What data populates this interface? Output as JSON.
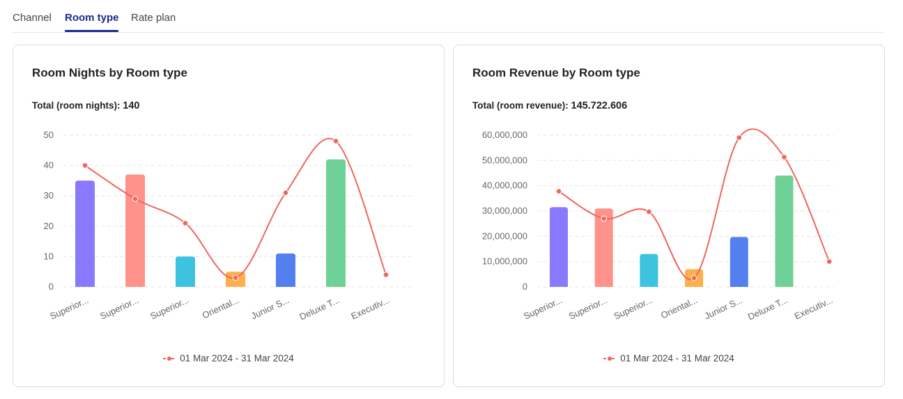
{
  "tabs": [
    {
      "label": "Channel",
      "active": false
    },
    {
      "label": "Room type",
      "active": true
    },
    {
      "label": "Rate plan",
      "active": false
    }
  ],
  "colors": {
    "accent": "#1b2a8c",
    "line": "#f0665a",
    "bars": [
      "#8979ff",
      "#ff928a",
      "#3cc3df",
      "#ffae4c",
      "#537ff1",
      "#6fd195",
      "#8979ff"
    ]
  },
  "chart_data": [
    {
      "type": "bar",
      "title": "Room Nights by Room type",
      "total_label": "Total (room nights):",
      "total_value": "140",
      "categories": [
        "Superior...",
        "Superior...",
        "Superior...",
        "Oriental...",
        "Junior S...",
        "Deluxe T...",
        "Executiv..."
      ],
      "series": [
        {
          "kind": "bar",
          "values": [
            35,
            37,
            10,
            5,
            11,
            42,
            0
          ]
        },
        {
          "kind": "line",
          "name": "01 Mar 2024 - 31 Mar 2024",
          "values": [
            40,
            29,
            21,
            3,
            31,
            48,
            4
          ]
        }
      ],
      "y_ticks": [
        "0",
        "10",
        "20",
        "30",
        "40",
        "50"
      ],
      "ylim": [
        0,
        50
      ],
      "grid": true,
      "legend_position": "bottom"
    },
    {
      "type": "bar",
      "title": "Room Revenue by Room type",
      "total_label": "Total (room revenue):",
      "total_value": "145.722.606",
      "categories": [
        "Superior...",
        "Superior...",
        "Superior...",
        "Oriental...",
        "Junior S...",
        "Deluxe T...",
        "Executiv..."
      ],
      "series": [
        {
          "kind": "bar",
          "values": [
            31500000,
            31000000,
            13000000,
            7000000,
            19700000,
            44000000,
            0
          ]
        },
        {
          "kind": "line",
          "name": "01 Mar 2024 - 31 Mar 2024",
          "values": [
            37800000,
            27000000,
            29700000,
            3500000,
            59000000,
            51300000,
            10000000
          ]
        }
      ],
      "y_ticks": [
        "0",
        "10,000,000",
        "20,000,000",
        "30,000,000",
        "40,000,000",
        "50,000,000",
        "60,000,000"
      ],
      "ylim": [
        0,
        60000000
      ],
      "grid": true,
      "legend_position": "bottom"
    }
  ]
}
